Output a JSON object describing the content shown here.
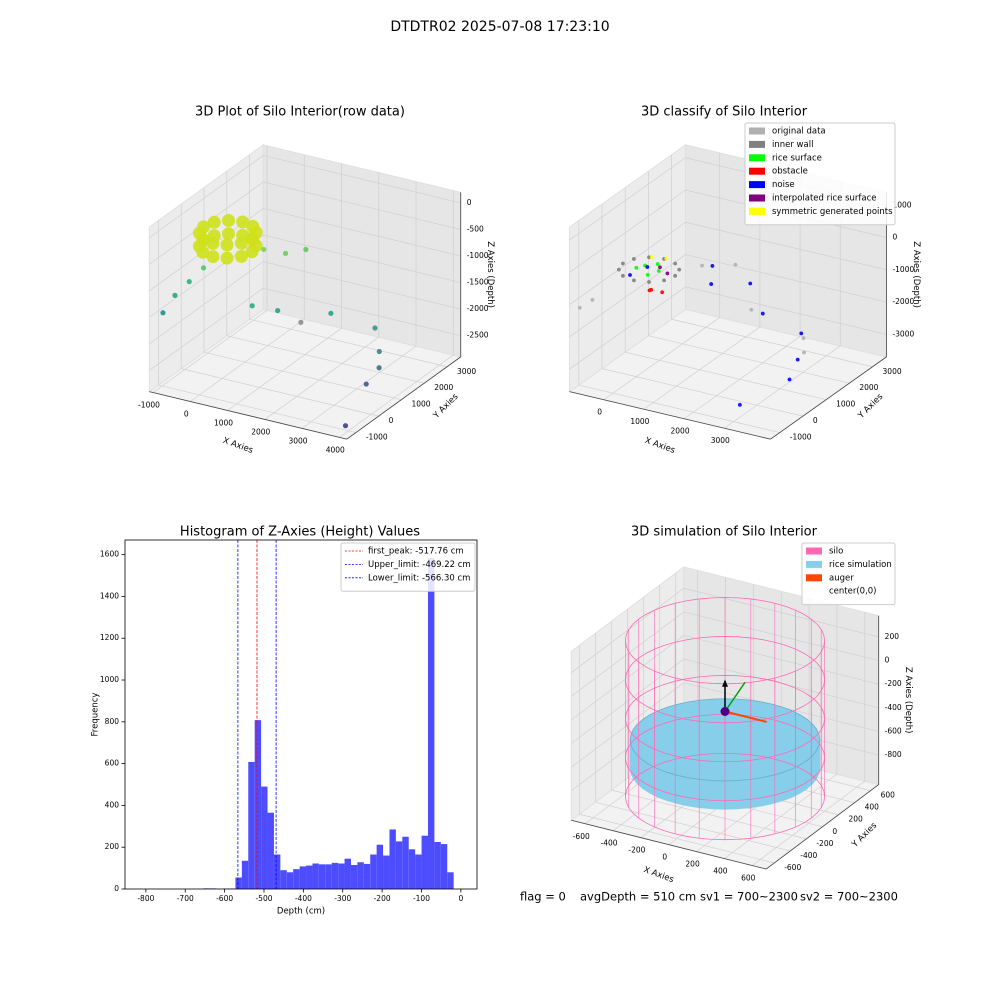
{
  "title": "DTDTR02 2025-07-08 17:23:10",
  "footer": [
    "flag = 0",
    "avgDepth = 510 cm",
    "sv1 = 700~2300",
    "sv2 = 700~2300"
  ],
  "chart_data": [
    {
      "type": "scatter3d",
      "title": "3D Plot of Silo Interior(row data)",
      "xlabel": "X Axies",
      "ylabel": "Y Axies",
      "zlabel": "Z Axies (Depth)",
      "xlim": [
        -1100,
        4200
      ],
      "ylim": [
        -1400,
        3600
      ],
      "zlim": [
        -2900,
        200
      ],
      "xticks": [
        -1000,
        0,
        1000,
        2000,
        3000,
        4000
      ],
      "yticks": [
        -1000,
        0,
        1000,
        2000,
        3000
      ],
      "zticks": [
        0,
        -500,
        -1000,
        -1500,
        -2000,
        -2500
      ],
      "series": [
        {
          "color": "#cfe11c",
          "x": [
            250,
            163,
            -75,
            -400,
            -725,
            -963,
            -1050,
            -963,
            -725,
            -400,
            -75,
            163,
            250,
            163,
            -75,
            -400,
            -725,
            -963,
            -1050,
            -963,
            -725,
            -400,
            -75,
            163
          ],
          "y": [
            900,
            1225,
            1463,
            1550,
            1463,
            1225,
            900,
            575,
            337,
            250,
            337,
            575,
            900,
            1225,
            1463,
            1550,
            1463,
            1225,
            900,
            575,
            337,
            250,
            337,
            575
          ],
          "z": [
            -500,
            -500,
            -500,
            -500,
            -500,
            -500,
            -500,
            -500,
            -500,
            -500,
            -500,
            -500,
            -750,
            -750,
            -750,
            -750,
            -750,
            -750,
            -750,
            -750,
            -750,
            -750,
            -750,
            -750
          ]
        },
        {
          "colors": [
            "#21918c",
            "#22a785",
            "#2fb47c",
            "#52c569",
            "#7ad151",
            "#6ccd5a",
            "#5ec962",
            "#28ae80",
            "#2a9d8a",
            "#8f8f8f",
            "#2e9c8a",
            "#3b8f8c",
            "#41808d",
            "#3f6b8e",
            "#3e5a8c",
            "#3b3f87"
          ],
          "x": [
            -1100,
            -900,
            -700,
            -500,
            200,
            600,
            900,
            500,
            1000,
            1500,
            2000,
            3000,
            3300,
            3600,
            3500,
            3800
          ],
          "y": [
            -800,
            -600,
            -300,
            0,
            1500,
            1800,
            2200,
            500,
            800,
            1000,
            1500,
            1800,
            1500,
            1000,
            600,
            -800
          ],
          "z": [
            -1600,
            -1300,
            -1100,
            -900,
            -900,
            -1000,
            -1000,
            -1600,
            -1700,
            -1900,
            -1800,
            -2000,
            -2300,
            -2400,
            -2600,
            -2900
          ]
        }
      ]
    },
    {
      "type": "scatter3d",
      "title": "3D classify of Silo Interior",
      "xlabel": "X Axies",
      "ylabel": "Y Axies",
      "zlabel": "Z Axies (Depth)",
      "xlim": [
        -850,
        4150
      ],
      "ylim": [
        -1400,
        3600
      ],
      "zlim": [
        -3700,
        1400
      ],
      "xticks": [
        0,
        1000,
        2000,
        3000
      ],
      "yticks": [
        -1000,
        0,
        1000,
        2000,
        3000
      ],
      "zticks": [
        1000,
        0,
        -1000,
        -2000,
        -3000
      ],
      "legend": "upper right",
      "series": [
        {
          "name": "original data",
          "color": "#b0b0b0",
          "x": [
            -1000,
            -800,
            600,
            1200,
            2000,
            3300,
            3600
          ],
          "y": [
            -700,
            -500,
            1800,
            2200,
            1500,
            1500,
            1000
          ],
          "z": [
            -1500,
            -1300,
            -1000,
            -1000,
            -1800,
            -2300,
            -2400
          ]
        },
        {
          "name": "inner wall",
          "color": "#808080",
          "x": [
            450,
            363,
            125,
            -200,
            -525,
            -763,
            -850,
            -763,
            -525,
            -200,
            125,
            363
          ],
          "y": [
            900,
            1225,
            1463,
            1550,
            1463,
            1225,
            900,
            575,
            337,
            250,
            337,
            575
          ],
          "z": [
            -900,
            -900,
            -900,
            -900,
            -900,
            -900,
            -900,
            -900,
            -900,
            -900,
            -900,
            -900
          ]
        },
        {
          "name": "rice surface",
          "color": "#00ff00",
          "x": [
            -300,
            -100,
            100,
            -400,
            0
          ],
          "y": [
            900,
            1100,
            800,
            700,
            500
          ],
          "z": [
            -800,
            -800,
            -800,
            -800,
            -800
          ]
        },
        {
          "name": "obstacle",
          "color": "#ff0000",
          "x": [
            100,
            300,
            200
          ],
          "y": [
            400,
            600,
            300
          ],
          "z": [
            -1200,
            -1300,
            -1100
          ]
        },
        {
          "name": "noise",
          "color": "#0000ff",
          "x": [
            -500,
            -300,
            800,
            1000,
            1800,
            2400,
            3300,
            3500,
            3700,
            3100
          ],
          "y": [
            600,
            1000,
            1900,
            1500,
            1800,
            1300,
            1400,
            900,
            200,
            -900
          ],
          "z": [
            -1000,
            -900,
            -1000,
            -1300,
            -1200,
            -1700,
            -2100,
            -2600,
            -2800,
            -3200
          ]
        },
        {
          "name": "interpolated rice surface",
          "color": "#800080",
          "x": [
            -100,
            200
          ],
          "y": [
            1200,
            1000
          ],
          "z": [
            -950,
            -950
          ]
        },
        {
          "name": "symmetric generated points",
          "color": "#ffff00",
          "x": [
            0,
            -300
          ],
          "y": [
            1300,
            1200
          ],
          "z": [
            -700,
            -700
          ]
        }
      ]
    },
    {
      "type": "histogram",
      "title": "Histogram of Z-Axies (Height) Values",
      "xlabel": "Depth (cm)",
      "ylabel": "Frequency",
      "color": "#4d4dff",
      "bins": [
        -817,
        -800.7,
        -784.4,
        -768.1,
        -751.8,
        -735.5,
        -719.2,
        -702.9,
        -686.6,
        -670.3,
        -654,
        -637.7,
        -621.4,
        -605.1,
        -588.8,
        -572.5,
        -556.2,
        -539.9,
        -523.6,
        -507.3,
        -491,
        -474.7,
        -458.4,
        -442.1,
        -425.8,
        -409.5,
        -393.2,
        -376.9,
        -360.6,
        -344.3,
        -328,
        -311.7,
        -295.4,
        -279.1,
        -262.8,
        -246.5,
        -230.2,
        -213.9,
        -197.6,
        -181.3,
        -165,
        -148.7,
        -132.4,
        -116.1,
        -99.8,
        -83.5,
        -67.2,
        -50.9,
        -34.6,
        -18.3,
        -2
      ],
      "values": [
        0,
        0,
        0,
        0,
        0,
        0,
        0,
        0,
        0,
        0,
        3,
        3,
        0,
        2,
        2,
        55,
        135,
        608,
        808,
        490,
        365,
        165,
        90,
        80,
        95,
        108,
        112,
        122,
        118,
        118,
        125,
        122,
        145,
        115,
        128,
        120,
        165,
        212,
        160,
        285,
        228,
        250,
        190,
        165,
        255,
        1585,
        225,
        215,
        80,
        0
      ],
      "xlim": [
        -853,
        41
      ],
      "ylim": [
        0,
        1670
      ],
      "xticks": [
        -800,
        -700,
        -600,
        -500,
        -400,
        -300,
        -200,
        -100,
        0
      ],
      "yticks": [
        0,
        200,
        400,
        600,
        800,
        1000,
        1200,
        1400,
        1600
      ],
      "legend": "upper right",
      "lines": [
        {
          "name": "first_peak: -517.76 cm",
          "value": -517.76,
          "color": "#ff0000"
        },
        {
          "name": "Upper_limit: -469.22 cm",
          "value": -469.22,
          "color": "#0000ff"
        },
        {
          "name": "Lower_limit: -566.30 cm",
          "value": -566.3,
          "color": "#0000ff"
        }
      ]
    },
    {
      "type": "simulation3d",
      "title": "3D simulation of Silo Interior",
      "xlabel": "X Axies",
      "ylabel": "Y Axies",
      "zlabel": "Z Axies (Depth)",
      "xlim": [
        -700,
        700
      ],
      "ylim": [
        -700,
        700
      ],
      "zlim": [
        -1050,
        380
      ],
      "xticks": [
        -600,
        -400,
        -200,
        0,
        200,
        400,
        600
      ],
      "yticks": [
        -600,
        -400,
        -200,
        0,
        200,
        400,
        600
      ],
      "zticks": [
        200,
        0,
        -200,
        -400,
        -600,
        -800
      ],
      "legend": "upper right",
      "series": [
        {
          "name": "silo",
          "color": "#ff69b4",
          "radius": 620,
          "z": [
            -1000,
            320
          ]
        },
        {
          "name": "rice simulation",
          "color": "#87ceeb",
          "radius": 590,
          "z": [
            -760,
            -520
          ]
        },
        {
          "name": "auger",
          "color": "#ff4500",
          "x": [
            0,
            300
          ],
          "y": [
            0,
            0
          ],
          "z": [
            -280,
            -280
          ]
        },
        {
          "name": "center(0,0)",
          "color": "#ffffff",
          "marker_color": "#4b0082",
          "x": [
            0
          ],
          "y": [
            0
          ],
          "z": [
            -280
          ]
        }
      ]
    }
  ]
}
